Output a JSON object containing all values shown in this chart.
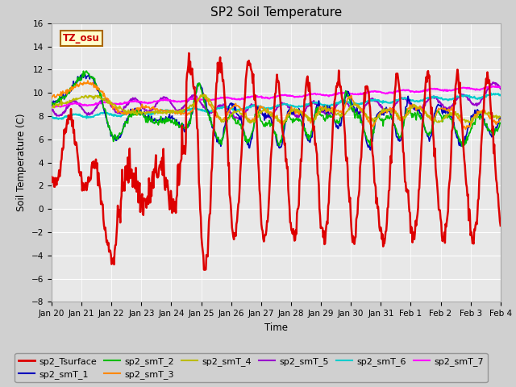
{
  "title": "SP2 Soil Temperature",
  "xlabel": "Time",
  "ylabel": "Soil Temperature (C)",
  "ylim": [
    -8,
    16
  ],
  "yticks": [
    -8,
    -6,
    -4,
    -2,
    0,
    2,
    4,
    6,
    8,
    10,
    12,
    14,
    16
  ],
  "x_start": 0,
  "x_end": 15.0,
  "x_ticks_labels": [
    "Jan 20",
    "Jan 21",
    "Jan 22",
    "Jan 23",
    "Jan 24",
    "Jan 25",
    "Jan 26",
    "Jan 27",
    "Jan 28",
    "Jan 29",
    "Jan 30",
    "Jan 31",
    "Feb 1",
    "Feb 2",
    "Feb 3",
    "Feb 4"
  ],
  "x_ticks_pos": [
    0,
    1,
    2,
    3,
    4,
    5,
    6,
    7,
    8,
    9,
    10,
    11,
    12,
    13,
    14,
    15
  ],
  "fig_bg_color": "#d0d0d0",
  "plot_bg_color": "#e8e8e8",
  "grid_color": "#ffffff",
  "series_colors": {
    "sp2_Tsurface": "#dd0000",
    "sp2_smT_1": "#0000bb",
    "sp2_smT_2": "#00bb00",
    "sp2_smT_3": "#ff8800",
    "sp2_smT_4": "#bbbb00",
    "sp2_smT_5": "#9900cc",
    "sp2_smT_6": "#00cccc",
    "sp2_smT_7": "#ff00ff"
  },
  "tz_label": "TZ_osu",
  "tz_bg": "#ffffcc",
  "tz_border": "#aa6600",
  "tz_text_color": "#cc0000",
  "legend_fontsize": 8,
  "title_fontsize": 11
}
